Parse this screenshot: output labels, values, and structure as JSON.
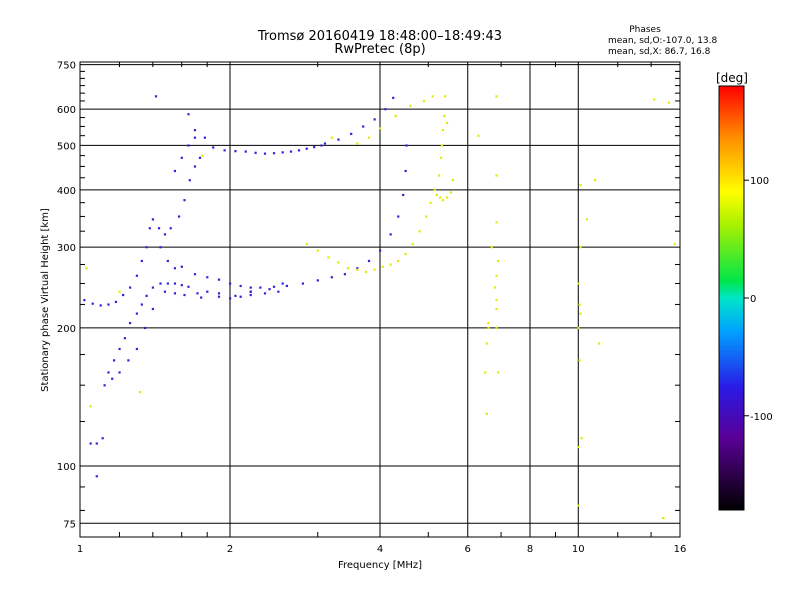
{
  "chart_data": {
    "type": "scatter",
    "title": "Tromsø 20160419 18:48:00–18:49:43",
    "subtitle": "RwPretec (8p)",
    "xlabel": "Frequency [MHz]",
    "ylabel": "Stationary phase Virtual Height [km]",
    "x_scale": "log",
    "y_scale": "log",
    "xlim": [
      1,
      16
    ],
    "ylim": [
      70,
      760
    ],
    "grid": true,
    "x_ticks": [
      "1",
      "2",
      "4",
      "6",
      "8",
      "10",
      "16"
    ],
    "y_ticks": [
      "75",
      "100",
      "200",
      "300",
      "400",
      "500",
      "600",
      "750"
    ],
    "phases_legend": {
      "heading": "Phases",
      "line_o": "mean, sd,O:-107.0, 13.8",
      "line_x": "mean, sd,X:  86.7, 16.8"
    },
    "colorbar": {
      "label": "[deg]",
      "range": [
        -180,
        180
      ],
      "tick_labels": [
        "100",
        "0",
        "-100"
      ]
    },
    "series": [
      {
        "name": "",
        "points": [
          [
            1.05,
            112
          ],
          [
            1.08,
            112
          ],
          [
            1.11,
            115
          ],
          [
            1.02,
            230
          ],
          [
            1.06,
            226
          ],
          [
            1.1,
            224
          ],
          [
            1.14,
            225
          ],
          [
            1.18,
            228
          ],
          [
            1.22,
            236
          ],
          [
            1.26,
            245
          ],
          [
            1.3,
            260
          ],
          [
            1.33,
            280
          ],
          [
            1.36,
            300
          ],
          [
            1.38,
            330
          ],
          [
            1.4,
            345
          ],
          [
            1.44,
            330
          ],
          [
            1.48,
            320
          ],
          [
            1.52,
            330
          ],
          [
            1.58,
            350
          ],
          [
            1.62,
            380
          ],
          [
            1.66,
            420
          ],
          [
            1.7,
            450
          ],
          [
            1.74,
            470
          ],
          [
            1.14,
            160
          ],
          [
            1.17,
            170
          ],
          [
            1.2,
            180
          ],
          [
            1.23,
            190
          ],
          [
            1.26,
            205
          ],
          [
            1.3,
            215
          ],
          [
            1.33,
            225
          ],
          [
            1.36,
            235
          ],
          [
            1.4,
            245
          ],
          [
            1.45,
            250
          ],
          [
            1.5,
            250
          ],
          [
            1.55,
            250
          ],
          [
            1.6,
            248
          ],
          [
            1.65,
            246
          ],
          [
            1.12,
            150
          ],
          [
            1.16,
            155
          ],
          [
            1.2,
            160
          ],
          [
            1.25,
            170
          ],
          [
            1.3,
            180
          ],
          [
            1.35,
            200
          ],
          [
            1.4,
            220
          ],
          [
            1.48,
            240
          ],
          [
            1.55,
            238
          ],
          [
            1.62,
            236
          ],
          [
            1.72,
            238
          ],
          [
            1.8,
            240
          ],
          [
            1.9,
            238
          ],
          [
            2.0,
            232
          ],
          [
            2.1,
            234
          ],
          [
            2.2,
            240
          ],
          [
            2.3,
            245
          ],
          [
            2.45,
            246
          ],
          [
            2.6,
            247
          ],
          [
            1.45,
            300
          ],
          [
            1.5,
            280
          ],
          [
            1.55,
            270
          ],
          [
            1.6,
            272
          ],
          [
            1.7,
            262
          ],
          [
            1.8,
            258
          ],
          [
            1.9,
            255
          ],
          [
            2.0,
            250
          ],
          [
            2.1,
            247
          ],
          [
            2.2,
            245
          ],
          [
            1.75,
            233
          ],
          [
            1.9,
            234
          ],
          [
            2.05,
            235
          ],
          [
            2.2,
            236
          ],
          [
            2.35,
            238
          ],
          [
            2.5,
            240
          ],
          [
            1.65,
            585
          ],
          [
            1.7,
            540
          ],
          [
            1.78,
            520
          ],
          [
            1.85,
            495
          ],
          [
            1.95,
            488
          ],
          [
            2.05,
            486
          ],
          [
            2.15,
            485
          ],
          [
            2.25,
            482
          ],
          [
            2.35,
            480
          ],
          [
            2.45,
            481
          ],
          [
            2.55,
            483
          ],
          [
            2.65,
            485
          ],
          [
            2.75,
            488
          ],
          [
            2.85,
            492
          ],
          [
            2.95,
            496
          ],
          [
            3.05,
            500
          ],
          [
            1.55,
            440
          ],
          [
            1.6,
            470
          ],
          [
            1.65,
            500
          ],
          [
            1.7,
            520
          ],
          [
            2.8,
            250
          ],
          [
            3.0,
            254
          ],
          [
            3.2,
            258
          ],
          [
            3.4,
            262
          ],
          [
            3.6,
            270
          ],
          [
            3.8,
            280
          ],
          [
            4.0,
            295
          ],
          [
            4.2,
            320
          ],
          [
            4.35,
            350
          ],
          [
            4.45,
            390
          ],
          [
            4.5,
            440
          ],
          [
            4.52,
            500
          ],
          [
            3.1,
            505
          ],
          [
            3.3,
            515
          ],
          [
            3.5,
            530
          ],
          [
            3.7,
            550
          ],
          [
            3.9,
            570
          ],
          [
            4.1,
            600
          ],
          [
            4.25,
            635
          ],
          [
            2.2,
            240
          ],
          [
            2.4,
            243
          ],
          [
            2.55,
            250
          ],
          [
            1.42,
            640
          ],
          [
            1.08,
            95
          ]
        ]
      },
      {
        "name": "",
        "points": [
          [
            2.85,
            305
          ],
          [
            3.0,
            295
          ],
          [
            3.15,
            285
          ],
          [
            3.3,
            278
          ],
          [
            3.45,
            270
          ],
          [
            3.6,
            268
          ],
          [
            3.75,
            265
          ],
          [
            3.9,
            268
          ],
          [
            4.05,
            272
          ],
          [
            4.2,
            275
          ],
          [
            4.35,
            280
          ],
          [
            4.5,
            290
          ],
          [
            4.65,
            305
          ],
          [
            4.8,
            325
          ],
          [
            4.95,
            350
          ],
          [
            5.05,
            375
          ],
          [
            5.15,
            400
          ],
          [
            5.2,
            390
          ],
          [
            5.28,
            385
          ],
          [
            5.35,
            380
          ],
          [
            5.45,
            385
          ],
          [
            5.55,
            395
          ],
          [
            5.6,
            420
          ],
          [
            5.32,
            500
          ],
          [
            5.35,
            540
          ],
          [
            5.38,
            580
          ],
          [
            5.4,
            640
          ],
          [
            5.45,
            560
          ],
          [
            5.3,
            470
          ],
          [
            5.25,
            430
          ],
          [
            3.6,
            505
          ],
          [
            3.8,
            520
          ],
          [
            4.0,
            545
          ],
          [
            4.3,
            580
          ],
          [
            4.6,
            610
          ],
          [
            4.9,
            625
          ],
          [
            5.1,
            640
          ],
          [
            3.2,
            520
          ],
          [
            1.03,
            270
          ],
          [
            1.2,
            240
          ],
          [
            1.05,
            135
          ],
          [
            1.32,
            145
          ],
          [
            1.76,
            475
          ],
          [
            6.3,
            525
          ],
          [
            6.6,
            200
          ],
          [
            6.6,
            205
          ],
          [
            6.55,
            185
          ],
          [
            6.5,
            160
          ],
          [
            6.55,
            130
          ],
          [
            6.7,
            300
          ],
          [
            6.85,
            640
          ],
          [
            6.85,
            430
          ],
          [
            6.85,
            340
          ],
          [
            6.9,
            280
          ],
          [
            6.85,
            260
          ],
          [
            6.8,
            245
          ],
          [
            6.85,
            230
          ],
          [
            6.85,
            220
          ],
          [
            6.85,
            200
          ],
          [
            6.9,
            160
          ],
          [
            10.1,
            410
          ],
          [
            10.4,
            345
          ],
          [
            10.8,
            420
          ],
          [
            11.0,
            185
          ],
          [
            10.1,
            300
          ],
          [
            10.0,
            250
          ],
          [
            10.05,
            225
          ],
          [
            10.1,
            215
          ],
          [
            10.0,
            200
          ],
          [
            10.05,
            170
          ],
          [
            10.15,
            115
          ],
          [
            10.0,
            110
          ],
          [
            10.0,
            82
          ],
          [
            14.2,
            630
          ],
          [
            15.2,
            620
          ],
          [
            15.6,
            305
          ],
          [
            14.8,
            77
          ]
        ]
      }
    ]
  }
}
